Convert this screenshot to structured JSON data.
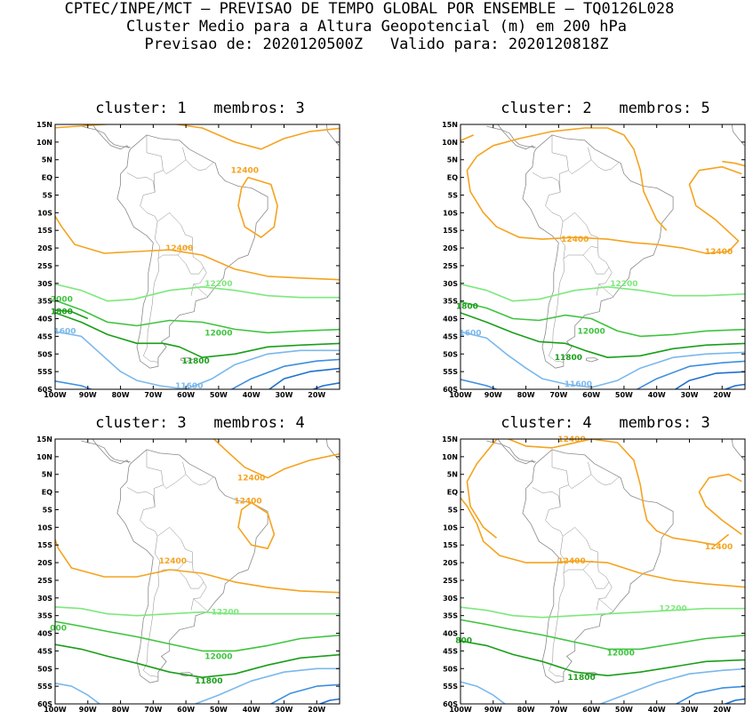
{
  "header": {
    "line1": "CPTEC/INPE/MCT — PREVISAO DE TEMPO GLOBAL POR ENSEMBLE — TQ0126L028",
    "line2": "Cluster Medio para a Altura Geopotencial (m) em 200 hPa",
    "line3": "Previsao de: 2020120500Z   Valido para: 2020120818Z"
  },
  "axes": {
    "lat_ticks": [
      "15N",
      "10N",
      "5N",
      "EQ",
      "5S",
      "10S",
      "15S",
      "20S",
      "25S",
      "30S",
      "35S",
      "40S",
      "45S",
      "50S",
      "55S",
      "60S"
    ],
    "lon_ticks": [
      "100W",
      "90W",
      "80W",
      "70W",
      "60W",
      "50W",
      "40W",
      "30W",
      "20W"
    ],
    "lat_range": [
      -60,
      15
    ],
    "lon_range": [
      -100,
      -13
    ]
  },
  "colors": {
    "c12400": "#f5a31f",
    "c12200": "#7de87d",
    "c12000": "#3ec43e",
    "c11800": "#1a9e1a",
    "c11600": "#7ab8ec",
    "c11400": "#3d8fe0",
    "c11200": "#1f6fcf",
    "coast": "#8a8a8a"
  },
  "panels": [
    {
      "title": "cluster: 1   membros: 3",
      "labels": [
        {
          "text": "12400",
          "lon": -42,
          "lat": 2,
          "level": "12400"
        },
        {
          "text": "12400",
          "lon": -62,
          "lat": -20,
          "level": "12400"
        },
        {
          "text": "12200",
          "lon": -50,
          "lat": -30,
          "level": "12200"
        },
        {
          "text": "2000",
          "lon": -98,
          "lat": -34.5,
          "level": "12000"
        },
        {
          "text": "1800",
          "lon": -98,
          "lat": -38,
          "level": "11800"
        },
        {
          "text": "12000",
          "lon": -50,
          "lat": -44,
          "level": "12000"
        },
        {
          "text": "1600",
          "lon": -97,
          "lat": -43.5,
          "level": "11600"
        },
        {
          "text": "11800",
          "lon": -57,
          "lat": -52,
          "level": "11800"
        },
        {
          "text": "11600",
          "lon": -59,
          "lat": -59,
          "level": "11600"
        }
      ]
    },
    {
      "title": "cluster: 2   membros: 5",
      "labels": [
        {
          "text": "12400",
          "lon": -65,
          "lat": -17.5,
          "level": "12400"
        },
        {
          "text": "12400",
          "lon": -21,
          "lat": -21,
          "level": "12400"
        },
        {
          "text": "12200",
          "lon": -50,
          "lat": -30,
          "level": "12200"
        },
        {
          "text": "1800",
          "lon": -98,
          "lat": -36.5,
          "level": "11800"
        },
        {
          "text": "12000",
          "lon": -60,
          "lat": -43.5,
          "level": "12000"
        },
        {
          "text": "1600",
          "lon": -97,
          "lat": -44,
          "level": "11600"
        },
        {
          "text": "11800",
          "lon": -67,
          "lat": -51,
          "level": "11800"
        },
        {
          "text": "11600",
          "lon": -64,
          "lat": -58.5,
          "level": "11600"
        }
      ]
    },
    {
      "title": "cluster: 3   membros: 4",
      "labels": [
        {
          "text": "12400",
          "lon": -40,
          "lat": 4,
          "level": "12400"
        },
        {
          "text": "12400",
          "lon": -41,
          "lat": -2.5,
          "level": "12400"
        },
        {
          "text": "12400",
          "lon": -64,
          "lat": -19.5,
          "level": "12400"
        },
        {
          "text": "12200",
          "lon": -48,
          "lat": -34,
          "level": "12200"
        },
        {
          "text": "000",
          "lon": -99,
          "lat": -38.5,
          "level": "12000"
        },
        {
          "text": "12000",
          "lon": -50,
          "lat": -46.5,
          "level": "12000"
        },
        {
          "text": "11800",
          "lon": -53,
          "lat": -53.5,
          "level": "11800"
        }
      ]
    },
    {
      "title": "cluster: 4   membros: 3",
      "labels": [
        {
          "text": "12400",
          "lon": -66,
          "lat": 15,
          "level": "12400"
        },
        {
          "text": "12400",
          "lon": -21,
          "lat": -15.5,
          "level": "12400"
        },
        {
          "text": "12400",
          "lon": -66,
          "lat": -19.5,
          "level": "12400"
        },
        {
          "text": "12200",
          "lon": -35,
          "lat": -33,
          "level": "12200"
        },
        {
          "text": "800",
          "lon": -99,
          "lat": -42,
          "level": "11800"
        },
        {
          "text": "12000",
          "lon": -51,
          "lat": -45.5,
          "level": "12000"
        },
        {
          "text": "11800",
          "lon": -63,
          "lat": -52.5,
          "level": "11800"
        }
      ]
    }
  ]
}
